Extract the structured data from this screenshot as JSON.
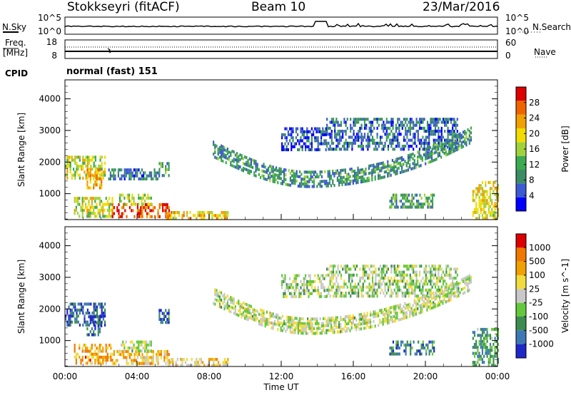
{
  "header": {
    "station": "Stokkseyri (fitACF)",
    "beam": "Beam 10",
    "date": "23/Mar/2016"
  },
  "labels": {
    "nsky": "N.Sky",
    "nsearch": "N.Search",
    "freq": "Freq.",
    "mhz": "[MHz]",
    "nave": "Nave",
    "cpid": "CPID",
    "mode": "normal (fast) 151",
    "time_axis": "Time UT"
  },
  "noise_panel": {
    "left_ticks": [
      "10^5",
      "10^0"
    ],
    "right_ticks": [
      "10^5",
      "10^0"
    ]
  },
  "freq_panel": {
    "left_ticks": [
      "18",
      "8"
    ],
    "right_ticks": [
      "60",
      "0"
    ]
  },
  "colors": {
    "power": [
      "#0000ff",
      "#3c5ad2",
      "#3c8c64",
      "#3caa50",
      "#a0d23c",
      "#f0dc00",
      "#f0a000",
      "#f06400",
      "#dc0000"
    ],
    "velocity": [
      "#1e28c8",
      "#3c78b4",
      "#3c8c50",
      "#64c83c",
      "#c8c8c8",
      "#f0dc3c",
      "#f0a000",
      "#f07800",
      "#dc0000"
    ]
  },
  "chart_data": [
    {
      "type": "heatmap",
      "title": "",
      "xlabel": "Time UT",
      "ylabel": "Slant Range [km]",
      "xlim": [
        "00:00",
        "00:00"
      ],
      "ylim": [
        180,
        4600
      ],
      "x_ticks": [
        "00:00",
        "04:00",
        "08:00",
        "12:00",
        "16:00",
        "20:00",
        "00:00"
      ],
      "y_ticks": [
        1000,
        2000,
        3000,
        4000
      ],
      "colorbar": {
        "label": "Power",
        "unit": "[dB]",
        "ticks": [
          "28",
          "24",
          "20",
          "16",
          "12",
          "8",
          "4"
        ],
        "range": [
          0,
          30
        ]
      },
      "regions": [
        {
          "t0": 0.0,
          "t1": 2.2,
          "r0": 1450,
          "r1": 2200,
          "level": 0.55
        },
        {
          "t0": 1.2,
          "t1": 2.0,
          "r0": 1200,
          "r1": 1800,
          "level": 0.7
        },
        {
          "t0": 2.4,
          "t1": 5.2,
          "r0": 1450,
          "r1": 1800,
          "level": 0.25
        },
        {
          "t0": 5.2,
          "t1": 5.8,
          "r0": 1550,
          "r1": 2000,
          "level": 0.35
        },
        {
          "t0": 0.5,
          "t1": 2.6,
          "r0": 300,
          "r1": 900,
          "level": 0.55
        },
        {
          "t0": 2.6,
          "t1": 5.8,
          "r0": 300,
          "r1": 700,
          "level": 0.85
        },
        {
          "t0": 3.0,
          "t1": 4.8,
          "r0": 700,
          "r1": 1000,
          "level": 0.5
        },
        {
          "t0": 5.6,
          "t1": 9.0,
          "r0": 250,
          "r1": 450,
          "level": 0.65
        },
        {
          "t0": 22.6,
          "t1": 24.0,
          "r0": 250,
          "r1": 1400,
          "level": 0.6
        },
        {
          "t0": 18.0,
          "t1": 20.5,
          "r0": 600,
          "r1": 1000,
          "level": 0.35
        },
        {
          "t0": 14.5,
          "t1": 21.8,
          "r0": 2400,
          "r1": 3400,
          "level": 0.2
        },
        {
          "t0": 12.0,
          "t1": 14.5,
          "r0": 2400,
          "r1": 3100,
          "level": 0.15
        }
      ],
      "arcs": [
        {
          "t0": 8.2,
          "t1": 22.5,
          "r_start": 2450,
          "r_min": 1500,
          "t_min": 13.5,
          "r_end": 2900,
          "level": 0.3
        }
      ]
    },
    {
      "type": "heatmap",
      "title": "",
      "xlabel": "Time UT",
      "ylabel": "Slant Range [km]",
      "xlim": [
        "00:00",
        "00:00"
      ],
      "ylim": [
        180,
        4600
      ],
      "x_ticks": [
        "00:00",
        "04:00",
        "08:00",
        "12:00",
        "16:00",
        "20:00",
        "00:00"
      ],
      "y_ticks": [
        1000,
        2000,
        3000,
        4000
      ],
      "colorbar": {
        "label": "Velocity",
        "unit": "[m s^-1]",
        "ticks": [
          "1000",
          "500",
          "100",
          "25",
          "-25",
          "-100",
          "-500",
          "-1000"
        ],
        "range": [
          -1200,
          1200
        ]
      },
      "regions": [
        {
          "t0": 0.0,
          "t1": 2.2,
          "r0": 1450,
          "r1": 2200,
          "level": 0.15
        },
        {
          "t0": 1.2,
          "t1": 2.0,
          "r0": 1200,
          "r1": 1800,
          "level": 0.15
        },
        {
          "t0": 5.2,
          "t1": 5.8,
          "r0": 1550,
          "r1": 2000,
          "level": 0.18
        },
        {
          "t0": 0.5,
          "t1": 2.6,
          "r0": 300,
          "r1": 900,
          "level": 0.72
        },
        {
          "t0": 2.6,
          "t1": 5.8,
          "r0": 300,
          "r1": 700,
          "level": 0.68
        },
        {
          "t0": 3.0,
          "t1": 4.8,
          "r0": 700,
          "r1": 1000,
          "level": 0.5
        },
        {
          "t0": 5.6,
          "t1": 9.0,
          "r0": 250,
          "r1": 450,
          "level": 0.62
        },
        {
          "t0": 22.6,
          "t1": 24.0,
          "r0": 250,
          "r1": 1400,
          "level": 0.3
        },
        {
          "t0": 18.0,
          "t1": 20.5,
          "r0": 600,
          "r1": 1000,
          "level": 0.22
        },
        {
          "t0": 14.5,
          "t1": 21.8,
          "r0": 2400,
          "r1": 3400,
          "level": 0.45
        },
        {
          "t0": 12.0,
          "t1": 14.5,
          "r0": 2400,
          "r1": 3100,
          "level": 0.45
        }
      ],
      "arcs": [
        {
          "t0": 8.2,
          "t1": 22.5,
          "r_start": 2450,
          "r_min": 1500,
          "t_min": 13.5,
          "r_end": 2900,
          "level": 0.5
        }
      ]
    }
  ]
}
